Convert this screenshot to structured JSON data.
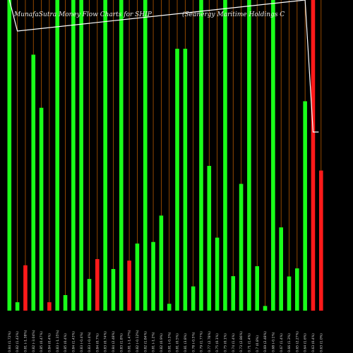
{
  "chart_data": {
    "type": "bar",
    "title_left": "MunafaSutra  Money Flow  Charts for SHIP",
    "title_right": "(Seanergy  Maritime  Holdings  C",
    "colors": {
      "up": "#1aff1a",
      "down": "#ff1a1a",
      "gridline": "#b35900",
      "price_line": "#ffffff",
      "background": "#000000"
    },
    "ylim": [
      0,
      100
    ],
    "bars": [
      {
        "value": 100,
        "color": "up",
        "label": "0.84 (1.72%)"
      },
      {
        "value": 2.7,
        "color": "up",
        "label": "0.82 (1.43%)"
      },
      {
        "value": 14.6,
        "color": "down",
        "label": "0.81 (-1.38%)"
      },
      {
        "value": 82.4,
        "color": "up",
        "label": "0.82 (-3.04%)"
      },
      {
        "value": 65.3,
        "color": "up",
        "label": "0.85 (0.47%)"
      },
      {
        "value": 2.7,
        "color": "down",
        "label": "0.84 (0.4%)"
      },
      {
        "value": 100,
        "color": "up",
        "label": "0.83 (-1.35%)"
      },
      {
        "value": 5.0,
        "color": "up",
        "label": "0.85 (0.4%)"
      },
      {
        "value": 100,
        "color": "up",
        "label": "0.84 (1.43%)"
      },
      {
        "value": 100,
        "color": "up",
        "label": "0.83 (-0.4%)"
      },
      {
        "value": 10.2,
        "color": "up",
        "label": "0.83 (-0.4%)"
      },
      {
        "value": 16.6,
        "color": "down",
        "label": "0.84 (0.7%)"
      },
      {
        "value": 100,
        "color": "up",
        "label": "0.83 (0.74%)"
      },
      {
        "value": 13.4,
        "color": "up",
        "label": "0.84 (2.48%)"
      },
      {
        "value": 100,
        "color": "up",
        "label": "0.83 (1.8%)"
      },
      {
        "value": 16.1,
        "color": "down",
        "label": "0.81 (-1.47%)"
      },
      {
        "value": 21.6,
        "color": "up",
        "label": "0.82 (-0.12%)"
      },
      {
        "value": 100,
        "color": "up",
        "label": "0.82 (1.84%)"
      },
      {
        "value": 22.1,
        "color": "up",
        "label": "0.81 (-1.2%)"
      },
      {
        "value": 30.6,
        "color": "up",
        "label": "0.82 (0.9%)"
      },
      {
        "value": 2.2,
        "color": "up",
        "label": "0.81 (-0.3%)"
      },
      {
        "value": 84.3,
        "color": "up",
        "label": "0.81 (0.5%)"
      },
      {
        "value": 84.3,
        "color": "up",
        "label": "0.81 (3.8%)"
      },
      {
        "value": 7.8,
        "color": "up",
        "label": "0.78 (-0.5%)"
      },
      {
        "value": 100,
        "color": "up",
        "label": "0.79 (1.77%)"
      },
      {
        "value": 46.6,
        "color": "up",
        "label": "0.77 (2.78%)"
      },
      {
        "value": 23.5,
        "color": "up",
        "label": "0.75 (0.1%)"
      },
      {
        "value": 100,
        "color": "up",
        "label": "0.75 (0.1%)"
      },
      {
        "value": 11.1,
        "color": "up",
        "label": "0.74 (1.4%)"
      },
      {
        "value": 40.8,
        "color": "up",
        "label": "0.73 (2.86%)"
      },
      {
        "value": 100,
        "color": "up",
        "label": "0.71 (1.4%)"
      },
      {
        "value": 14.3,
        "color": "up",
        "label": "0.7 (0.8%)"
      },
      {
        "value": 1.5,
        "color": "up",
        "label": "0.69 (2.48%)"
      },
      {
        "value": 100,
        "color": "up",
        "label": "0.68 (-0.1%)"
      },
      {
        "value": 26.8,
        "color": "up",
        "label": "0.67 (1.4%)"
      },
      {
        "value": 11.0,
        "color": "up",
        "label": "0.66 (1.3%)"
      },
      {
        "value": 13.6,
        "color": "up",
        "label": "0.65 (2.27%)"
      },
      {
        "value": 67.4,
        "color": "up",
        "label": "0.64 (1.6%)"
      },
      {
        "value": 100,
        "color": "down",
        "label": "0.63 (0.4%)"
      },
      {
        "value": 45.1,
        "color": "down",
        "label": "0.63 (1.0%)"
      }
    ],
    "price_line": [
      {
        "bar": 0,
        "value": 100
      },
      {
        "bar": 1,
        "value": 90
      },
      {
        "bar": 37,
        "value": 100
      },
      {
        "bar": 38,
        "value": 57.5
      },
      {
        "bar": 38.7,
        "value": 57.5
      }
    ],
    "grid": true,
    "legend": "none"
  }
}
